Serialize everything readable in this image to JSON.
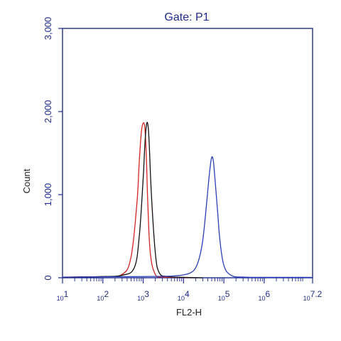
{
  "chart_data": {
    "type": "line",
    "title": "Gate: P1",
    "xlabel": "FL2-H",
    "ylabel": "Count",
    "x_scale": "log",
    "xlim": [
      10,
      15848932
    ],
    "ylim": [
      0,
      3000
    ],
    "x_ticks": [
      {
        "value": 10,
        "label_base": "10",
        "label_exp": "1"
      },
      {
        "value": 100,
        "label_base": "10",
        "label_exp": "2"
      },
      {
        "value": 1000,
        "label_base": "10",
        "label_exp": "3"
      },
      {
        "value": 10000,
        "label_base": "10",
        "label_exp": "4"
      },
      {
        "value": 100000,
        "label_base": "10",
        "label_exp": "5"
      },
      {
        "value": 1000000,
        "label_base": "10",
        "label_exp": "6"
      },
      {
        "value": 15848932,
        "label_base": "10",
        "label_exp": "7.2"
      }
    ],
    "y_ticks": [
      {
        "value": 0,
        "label": "0"
      },
      {
        "value": 1000,
        "label": "1,000"
      },
      {
        "value": 2000,
        "label": "2,000"
      },
      {
        "value": 3000,
        "label": "3,000"
      }
    ],
    "grid": false,
    "series": [
      {
        "color": "#d62424",
        "x": [
          10,
          30,
          100,
          300,
          500,
          700,
          800,
          900,
          1000,
          1100,
          1200,
          1300,
          1500,
          2000,
          3000,
          6000,
          20000
        ],
        "y": [
          5,
          10,
          15,
          40,
          250,
          900,
          1400,
          1750,
          1860,
          1800,
          1450,
          900,
          300,
          40,
          10,
          5,
          0
        ]
      },
      {
        "color": "#111111",
        "x": [
          10,
          30,
          100,
          300,
          600,
          800,
          1000,
          1100,
          1200,
          1300,
          1400,
          1600,
          2000,
          2500,
          4000,
          10000,
          30000
        ],
        "y": [
          5,
          10,
          15,
          30,
          120,
          500,
          1200,
          1600,
          1830,
          1850,
          1650,
          1000,
          300,
          60,
          15,
          5,
          0
        ]
      },
      {
        "color": "#2a3fb8",
        "x": [
          10,
          100,
          1000,
          5000,
          10000,
          15000,
          20000,
          25000,
          30000,
          35000,
          40000,
          45000,
          50000,
          55000,
          60000,
          70000,
          80000,
          100000,
          150000,
          300000,
          1000000,
          15000000
        ],
        "y": [
          8,
          12,
          15,
          20,
          35,
          60,
          120,
          250,
          450,
          750,
          1050,
          1300,
          1450,
          1400,
          1200,
          800,
          450,
          150,
          30,
          8,
          5,
          5
        ]
      }
    ]
  }
}
